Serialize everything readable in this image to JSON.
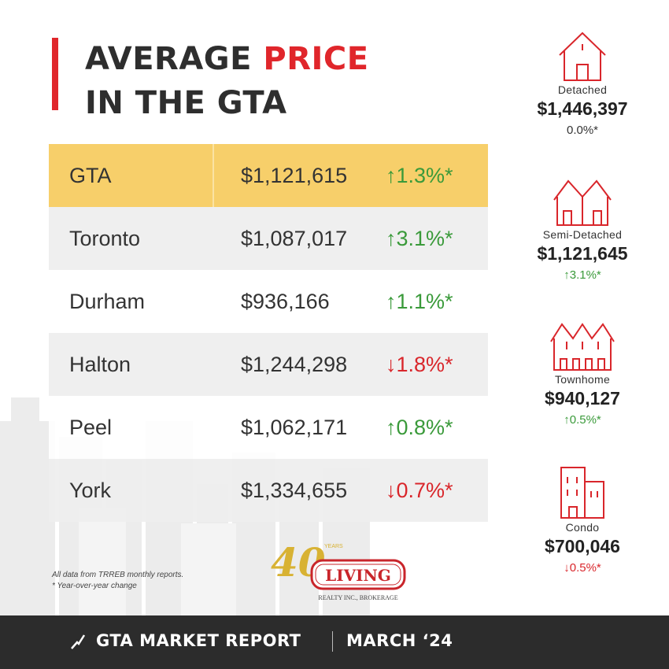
{
  "title": {
    "line1_part1": "AVERAGE ",
    "line1_accent": "PRICE",
    "line2": "IN THE GTA"
  },
  "table": {
    "header": {
      "name": "GTA",
      "price": "$1,121,615",
      "change": "↑1.3%*"
    },
    "rows": [
      {
        "name": "Toronto",
        "price": "$1,087,017",
        "change": "↑3.1%*",
        "direction": "up"
      },
      {
        "name": "Durham",
        "price": "$936,166",
        "change": "↑1.1%*",
        "direction": "up"
      },
      {
        "name": "Halton",
        "price": "$1,244,298",
        "change": "↓1.8%*",
        "direction": "down"
      },
      {
        "name": "Peel",
        "price": "$1,062,171",
        "change": "↑0.8%*",
        "direction": "up"
      },
      {
        "name": "York",
        "price": "$1,334,655",
        "change": "↓0.7%*",
        "direction": "down"
      }
    ]
  },
  "home_types": [
    {
      "label": "Detached",
      "price": "$1,446,397",
      "change": "0.0%*",
      "direction": "flat",
      "icon": "detached-house-icon"
    },
    {
      "label": "Semi-Detached",
      "price": "$1,121,645",
      "change": "↑3.1%*",
      "direction": "up",
      "icon": "semi-detached-icon"
    },
    {
      "label": "Townhome",
      "price": "$940,127",
      "change": "↑0.5%*",
      "direction": "up",
      "icon": "townhome-icon"
    },
    {
      "label": "Condo",
      "price": "$700,046",
      "change": "↓0.5%*",
      "direction": "down",
      "icon": "condo-icon"
    }
  ],
  "footnote": {
    "line1": "All data from TRREB monthly reports.",
    "line2": "* Year-over-year change"
  },
  "logo": {
    "number": "40",
    "years": "YEARS",
    "name": "LIVING",
    "sub": "REALTY INC., BROKERAGE"
  },
  "footer": {
    "report": "GTA MARKET REPORT",
    "date": "MARCH ‘24"
  },
  "colors": {
    "accent": "#e0262b",
    "highlight": "#f7cf6a",
    "up": "#3a9a3a",
    "down": "#d9262b",
    "footer_bg": "#2c2c2c"
  }
}
